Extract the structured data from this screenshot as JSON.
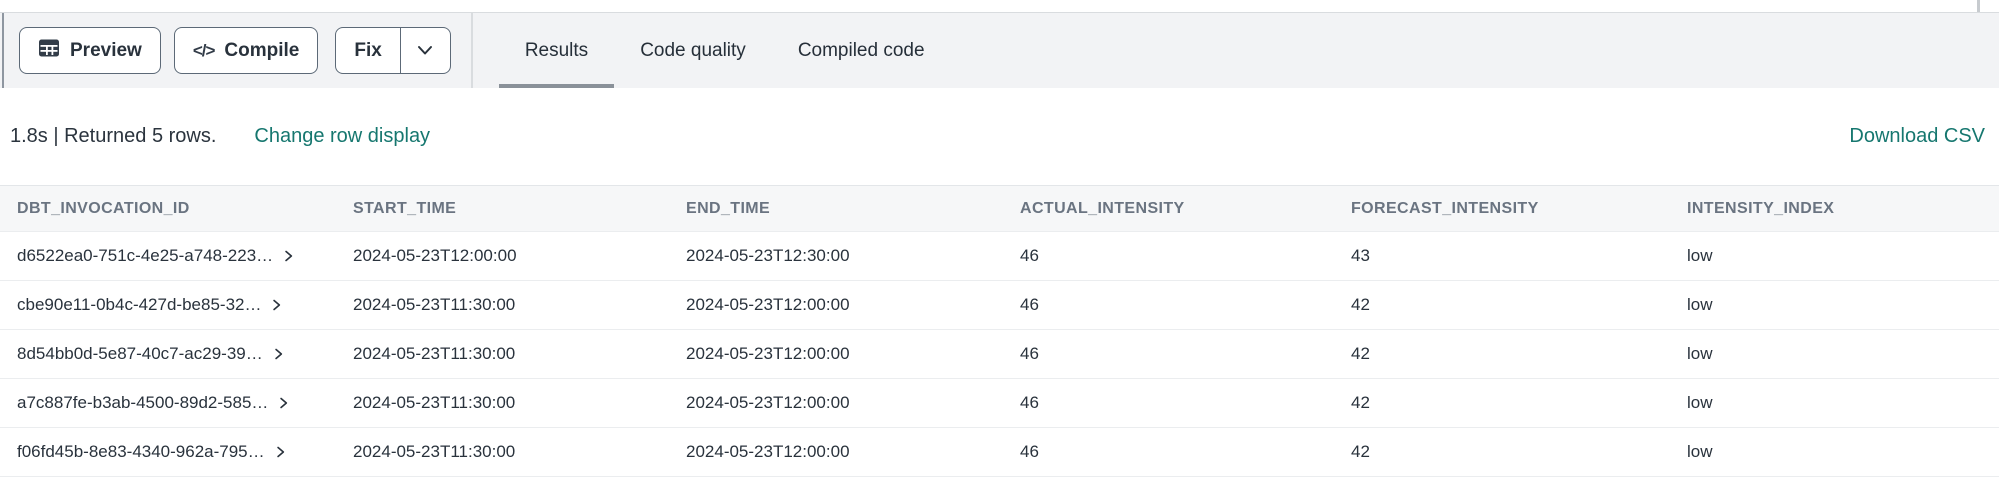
{
  "toolbar": {
    "preview_label": "Preview",
    "compile_label": "Compile",
    "compile_glyph": "</>",
    "fix_label": "Fix"
  },
  "tabs": [
    {
      "label": "Results",
      "active": true
    },
    {
      "label": "Code quality",
      "active": false
    },
    {
      "label": "Compiled code",
      "active": false
    }
  ],
  "status": {
    "summary": "1.8s | Returned 5 rows.",
    "change_row_display_label": "Change row display",
    "download_csv_label": "Download CSV"
  },
  "table": {
    "columns": [
      "DBT_INVOCATION_ID",
      "START_TIME",
      "END_TIME",
      "ACTUAL_INTENSITY",
      "FORECAST_INTENSITY",
      "INTENSITY_INDEX"
    ],
    "rows": [
      {
        "dbt_invocation_id": "d6522ea0-751c-4e25-a748-223…",
        "start_time": "2024-05-23T12:00:00",
        "end_time": "2024-05-23T12:30:00",
        "actual_intensity": "46",
        "forecast_intensity": "43",
        "intensity_index": "low"
      },
      {
        "dbt_invocation_id": "cbe90e11-0b4c-427d-be85-32…",
        "start_time": "2024-05-23T11:30:00",
        "end_time": "2024-05-23T12:00:00",
        "actual_intensity": "46",
        "forecast_intensity": "42",
        "intensity_index": "low"
      },
      {
        "dbt_invocation_id": "8d54bb0d-5e87-40c7-ac29-39…",
        "start_time": "2024-05-23T11:30:00",
        "end_time": "2024-05-23T12:00:00",
        "actual_intensity": "46",
        "forecast_intensity": "42",
        "intensity_index": "low"
      },
      {
        "dbt_invocation_id": "a7c887fe-b3ab-4500-89d2-585…",
        "start_time": "2024-05-23T11:30:00",
        "end_time": "2024-05-23T12:00:00",
        "actual_intensity": "46",
        "forecast_intensity": "42",
        "intensity_index": "low"
      },
      {
        "dbt_invocation_id": "f06fd45b-8e83-4340-962a-795…",
        "start_time": "2024-05-23T11:30:00",
        "end_time": "2024-05-23T12:00:00",
        "actual_intensity": "46",
        "forecast_intensity": "42",
        "intensity_index": "low"
      }
    ]
  },
  "colors": {
    "accent_teal": "#16776f",
    "toolbar_background": "#f2f3f5",
    "header_background": "#f6f7f8",
    "button_border": "#5c6977",
    "text_dark": "#29323c",
    "header_text": "#6a7481",
    "active_tab_underline": "#8a9199"
  }
}
